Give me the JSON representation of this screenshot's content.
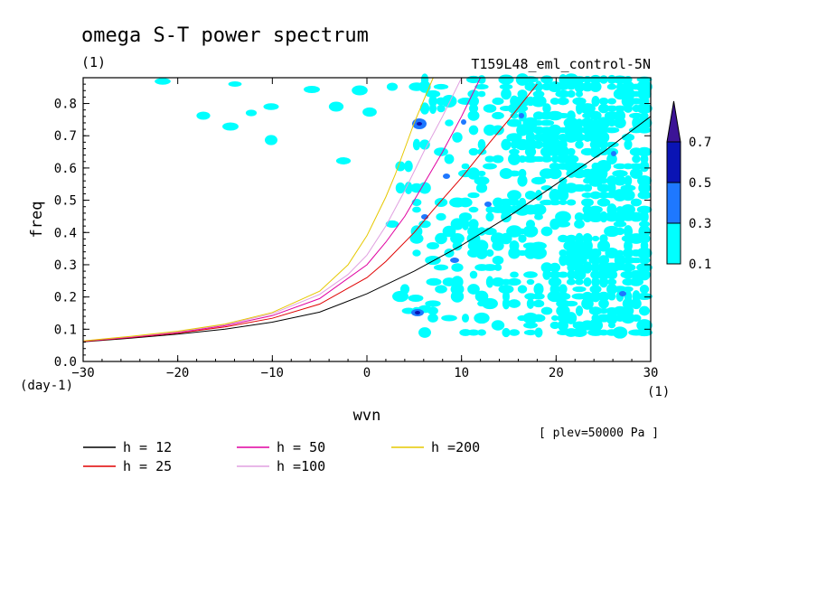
{
  "chart_data": {
    "type": "line",
    "title": "omega S-T power spectrum",
    "title_units": "(1)",
    "subtitle": "T159L48_eml_control-5N",
    "xlabel": "wvn",
    "xunits": "(1)",
    "ylabel": "freq",
    "yunits": "(day-1)",
    "xlim": [
      -30,
      30
    ],
    "ylim": [
      0,
      0.88
    ],
    "xticks": [
      -30,
      -20,
      -10,
      0,
      10,
      20,
      30
    ],
    "yticks": [
      0.0,
      0.1,
      0.2,
      0.3,
      0.4,
      0.5,
      0.6,
      0.7,
      0.8
    ],
    "ytick_labels": [
      "0.0",
      "0.1",
      "0.2",
      "0.3",
      "0.4",
      "0.5",
      "0.6",
      "0.7",
      "0.8"
    ],
    "annotation": "[ plev=50000 Pa ]",
    "colorbar": {
      "levels": [
        0.1,
        0.3,
        0.5,
        0.7
      ],
      "labels": [
        "0.1",
        "0.3",
        "0.5",
        "0.7"
      ],
      "colors": [
        "#00ffff",
        "#1e78ff",
        "#0a14b4",
        "#3c1496"
      ]
    },
    "series": [
      {
        "name": "h = 12",
        "color": "#000000",
        "h": 12,
        "x": [
          -30,
          -25,
          -20,
          -15,
          -10,
          -5,
          0,
          5,
          10,
          15,
          20,
          25,
          30
        ],
        "y": [
          0.061,
          0.072,
          0.085,
          0.1,
          0.122,
          0.153,
          0.21,
          0.28,
          0.36,
          0.45,
          0.55,
          0.65,
          0.76
        ]
      },
      {
        "name": "h = 25",
        "color": "#e00000",
        "h": 25,
        "x": [
          -30,
          -25,
          -20,
          -15,
          -10,
          -5,
          0,
          2,
          5,
          7,
          10,
          13,
          15,
          18
        ],
        "y": [
          0.062,
          0.074,
          0.088,
          0.107,
          0.134,
          0.178,
          0.26,
          0.31,
          0.4,
          0.47,
          0.57,
          0.68,
          0.75,
          0.86
        ]
      },
      {
        "name": "h = 50",
        "color": "#e000a0",
        "h": 50,
        "x": [
          -30,
          -25,
          -20,
          -15,
          -10,
          -5,
          0,
          2,
          4,
          6,
          8,
          10,
          12
        ],
        "y": [
          0.063,
          0.075,
          0.09,
          0.111,
          0.142,
          0.195,
          0.3,
          0.37,
          0.45,
          0.55,
          0.65,
          0.76,
          0.88
        ]
      },
      {
        "name": "h =100",
        "color": "#e0a0e0",
        "h": 100,
        "x": [
          -30,
          -25,
          -20,
          -15,
          -10,
          -5,
          -2,
          0,
          2,
          4,
          6,
          8,
          10
        ],
        "y": [
          0.064,
          0.077,
          0.092,
          0.114,
          0.148,
          0.208,
          0.27,
          0.33,
          0.42,
          0.53,
          0.65,
          0.76,
          0.88
        ]
      },
      {
        "name": "h =200",
        "color": "#e6c800",
        "h": 200,
        "x": [
          -30,
          -25,
          -20,
          -15,
          -10,
          -5,
          -2,
          0,
          1,
          2,
          3,
          4,
          5,
          6,
          7
        ],
        "y": [
          0.064,
          0.078,
          0.094,
          0.116,
          0.152,
          0.218,
          0.3,
          0.39,
          0.45,
          0.51,
          0.58,
          0.66,
          0.74,
          0.81,
          0.88
        ]
      }
    ]
  }
}
